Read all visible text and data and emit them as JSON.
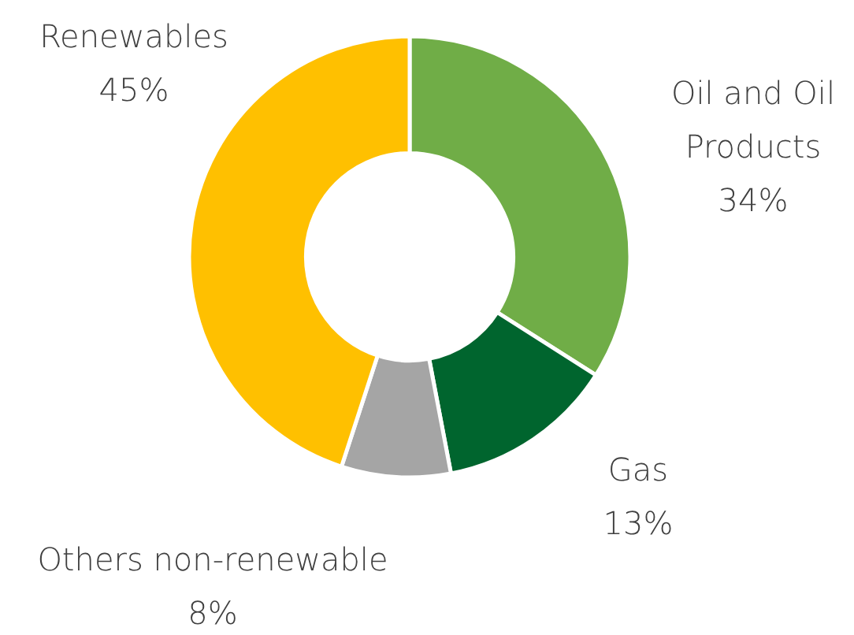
{
  "chart_data": {
    "type": "donut",
    "categories": [
      "Oil and Oil Products",
      "Gas",
      "Others non-renewable",
      "Renewables"
    ],
    "values": [
      34,
      13,
      8,
      45
    ],
    "colors": [
      "#70ad47",
      "#00652e",
      "#a5a5a5",
      "#ffc000"
    ],
    "value_labels": [
      "34%",
      "13%",
      "8%",
      "45%"
    ],
    "legend": false
  }
}
